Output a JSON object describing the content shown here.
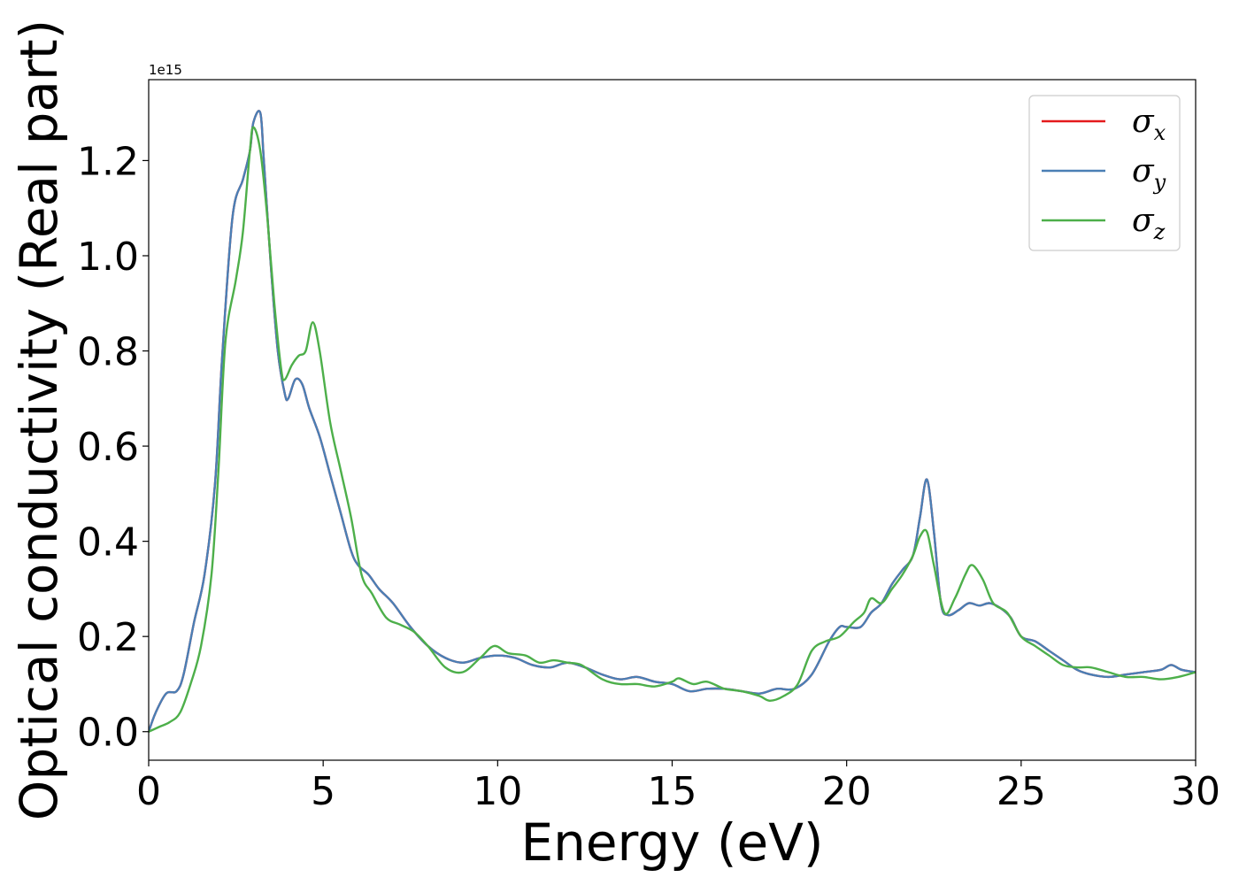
{
  "chart_data": {
    "type": "line",
    "title": "",
    "xlabel": "Energy (eV)",
    "ylabel": "Optical conductivity (Real part)",
    "offset_text": "1e15",
    "xlim": [
      0,
      30
    ],
    "ylim": [
      -0.06,
      1.37
    ],
    "xticks": [
      0,
      5,
      10,
      15,
      20,
      25,
      30
    ],
    "xtick_labels": [
      "0",
      "5",
      "10",
      "15",
      "20",
      "25",
      "30"
    ],
    "yticks": [
      0.0,
      0.2,
      0.4,
      0.6,
      0.8,
      1.0,
      1.2
    ],
    "ytick_labels": [
      "0.0",
      "0.2",
      "0.4",
      "0.6",
      "0.8",
      "1.0",
      "1.2"
    ],
    "grid": false,
    "legend_position": "top-right",
    "series": [
      {
        "name": "σx",
        "symbol": "σ",
        "subscript": "x",
        "color": "#e41a1c",
        "x": [
          0,
          0.2,
          0.5,
          0.8,
          1.0,
          1.3,
          1.6,
          1.9,
          2.1,
          2.4,
          2.7,
          2.9,
          3.0,
          3.2,
          3.3,
          3.5,
          3.7,
          3.9,
          4.0,
          4.2,
          4.4,
          4.6,
          4.9,
          5.2,
          5.5,
          5.8,
          6.0,
          6.3,
          6.6,
          7.0,
          7.5,
          8.0,
          8.5,
          9.0,
          9.5,
          10.0,
          10.5,
          11.0,
          11.5,
          12.0,
          12.5,
          13.0,
          13.5,
          14.0,
          14.5,
          15.0,
          15.5,
          16.0,
          16.5,
          17.0,
          17.5,
          18.0,
          18.5,
          19.0,
          19.5,
          19.8,
          20.0,
          20.4,
          20.7,
          21.0,
          21.3,
          21.6,
          21.9,
          22.1,
          22.3,
          22.5,
          22.7,
          22.9,
          23.2,
          23.5,
          23.8,
          24.1,
          24.4,
          24.7,
          25.0,
          25.4,
          25.8,
          26.2,
          26.6,
          27.0,
          27.5,
          28.0,
          28.5,
          29.0,
          29.3,
          29.6,
          30.0
        ],
        "y": [
          0.0,
          0.04,
          0.08,
          0.085,
          0.12,
          0.23,
          0.33,
          0.52,
          0.78,
          1.08,
          1.16,
          1.22,
          1.28,
          1.3,
          1.2,
          0.98,
          0.8,
          0.71,
          0.7,
          0.74,
          0.73,
          0.68,
          0.62,
          0.54,
          0.46,
          0.38,
          0.35,
          0.33,
          0.3,
          0.27,
          0.22,
          0.18,
          0.155,
          0.145,
          0.155,
          0.16,
          0.155,
          0.14,
          0.135,
          0.145,
          0.135,
          0.12,
          0.11,
          0.115,
          0.105,
          0.1,
          0.085,
          0.09,
          0.09,
          0.085,
          0.08,
          0.09,
          0.09,
          0.12,
          0.19,
          0.22,
          0.22,
          0.22,
          0.25,
          0.27,
          0.31,
          0.34,
          0.37,
          0.45,
          0.53,
          0.42,
          0.27,
          0.245,
          0.255,
          0.27,
          0.265,
          0.27,
          0.26,
          0.24,
          0.2,
          0.19,
          0.17,
          0.15,
          0.13,
          0.12,
          0.115,
          0.12,
          0.125,
          0.13,
          0.14,
          0.13,
          0.125
        ]
      },
      {
        "name": "σy",
        "symbol": "σ",
        "subscript": "y",
        "color": "#4a7fb5",
        "x": [
          0,
          0.2,
          0.5,
          0.8,
          1.0,
          1.3,
          1.6,
          1.9,
          2.1,
          2.4,
          2.7,
          2.9,
          3.0,
          3.2,
          3.3,
          3.5,
          3.7,
          3.9,
          4.0,
          4.2,
          4.4,
          4.6,
          4.9,
          5.2,
          5.5,
          5.8,
          6.0,
          6.3,
          6.6,
          7.0,
          7.5,
          8.0,
          8.5,
          9.0,
          9.5,
          10.0,
          10.5,
          11.0,
          11.5,
          12.0,
          12.5,
          13.0,
          13.5,
          14.0,
          14.5,
          15.0,
          15.5,
          16.0,
          16.5,
          17.0,
          17.5,
          18.0,
          18.5,
          19.0,
          19.5,
          19.8,
          20.0,
          20.4,
          20.7,
          21.0,
          21.3,
          21.6,
          21.9,
          22.1,
          22.3,
          22.5,
          22.7,
          22.9,
          23.2,
          23.5,
          23.8,
          24.1,
          24.4,
          24.7,
          25.0,
          25.4,
          25.8,
          26.2,
          26.6,
          27.0,
          27.5,
          28.0,
          28.5,
          29.0,
          29.3,
          29.6,
          30.0
        ],
        "y": [
          0.0,
          0.04,
          0.08,
          0.085,
          0.12,
          0.23,
          0.33,
          0.52,
          0.78,
          1.08,
          1.16,
          1.22,
          1.28,
          1.3,
          1.2,
          0.98,
          0.8,
          0.71,
          0.7,
          0.74,
          0.73,
          0.68,
          0.62,
          0.54,
          0.46,
          0.38,
          0.35,
          0.33,
          0.3,
          0.27,
          0.22,
          0.18,
          0.155,
          0.145,
          0.155,
          0.16,
          0.155,
          0.14,
          0.135,
          0.145,
          0.135,
          0.12,
          0.11,
          0.115,
          0.105,
          0.1,
          0.085,
          0.09,
          0.09,
          0.085,
          0.08,
          0.09,
          0.09,
          0.12,
          0.19,
          0.22,
          0.22,
          0.22,
          0.25,
          0.27,
          0.31,
          0.34,
          0.37,
          0.45,
          0.53,
          0.42,
          0.27,
          0.245,
          0.255,
          0.27,
          0.265,
          0.27,
          0.26,
          0.24,
          0.2,
          0.19,
          0.17,
          0.15,
          0.13,
          0.12,
          0.115,
          0.12,
          0.125,
          0.13,
          0.14,
          0.13,
          0.125
        ]
      },
      {
        "name": "σz",
        "symbol": "σ",
        "subscript": "z",
        "color": "#4daf4a",
        "x": [
          0,
          0.3,
          0.6,
          0.9,
          1.2,
          1.5,
          1.8,
          2.0,
          2.2,
          2.5,
          2.7,
          2.9,
          3.0,
          3.2,
          3.4,
          3.6,
          3.8,
          3.9,
          4.1,
          4.3,
          4.5,
          4.7,
          4.9,
          5.2,
          5.5,
          5.8,
          6.1,
          6.4,
          6.8,
          7.2,
          7.6,
          8.0,
          8.5,
          9.0,
          9.5,
          9.9,
          10.3,
          10.8,
          11.2,
          11.6,
          12.0,
          12.4,
          13.0,
          13.5,
          14.0,
          14.5,
          15.0,
          15.2,
          15.6,
          16.0,
          16.5,
          17.0,
          17.5,
          17.8,
          18.2,
          18.6,
          19.0,
          19.4,
          19.8,
          20.2,
          20.5,
          20.7,
          21.0,
          21.3,
          21.6,
          21.9,
          22.1,
          22.3,
          22.5,
          22.8,
          23.1,
          23.4,
          23.6,
          23.9,
          24.2,
          24.6,
          25.0,
          25.4,
          25.8,
          26.2,
          26.6,
          27.0,
          27.5,
          28.0,
          28.5,
          29.0,
          29.5,
          30.0
        ],
        "y": [
          0.0,
          0.01,
          0.02,
          0.04,
          0.1,
          0.18,
          0.33,
          0.55,
          0.82,
          0.95,
          1.05,
          1.22,
          1.27,
          1.22,
          1.08,
          0.9,
          0.76,
          0.74,
          0.77,
          0.79,
          0.8,
          0.86,
          0.8,
          0.65,
          0.55,
          0.45,
          0.33,
          0.29,
          0.24,
          0.225,
          0.21,
          0.18,
          0.135,
          0.125,
          0.155,
          0.18,
          0.165,
          0.16,
          0.145,
          0.15,
          0.145,
          0.14,
          0.11,
          0.1,
          0.1,
          0.095,
          0.105,
          0.112,
          0.1,
          0.105,
          0.09,
          0.085,
          0.075,
          0.065,
          0.075,
          0.1,
          0.17,
          0.19,
          0.2,
          0.23,
          0.25,
          0.28,
          0.27,
          0.3,
          0.33,
          0.37,
          0.41,
          0.42,
          0.35,
          0.25,
          0.28,
          0.33,
          0.35,
          0.32,
          0.27,
          0.25,
          0.2,
          0.18,
          0.16,
          0.14,
          0.135,
          0.135,
          0.125,
          0.115,
          0.115,
          0.11,
          0.115,
          0.125
        ]
      }
    ]
  }
}
